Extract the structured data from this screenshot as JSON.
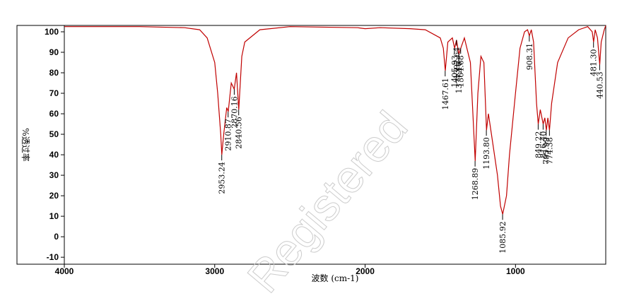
{
  "chart_data": {
    "type": "line",
    "ylabel": "%透过率",
    "xlabel": "波数 (cm-1)",
    "watermark": "Registered",
    "color": "#c00000",
    "xlim": [
      4000,
      400
    ],
    "ylim": [
      -13.4,
      103.1
    ],
    "xticks": [
      4000,
      3000,
      2000,
      1000
    ],
    "yticks": [
      -10,
      0,
      10,
      20,
      30,
      40,
      50,
      60,
      70,
      80,
      90,
      100
    ],
    "x": [
      4000,
      3500,
      3200,
      3100,
      3050,
      3000,
      2980,
      2960,
      2953,
      2940,
      2920,
      2910,
      2890,
      2870,
      2855,
      2840,
      2820,
      2800,
      2700,
      2500,
      2050,
      2000,
      1900,
      1700,
      1600,
      1500,
      1480,
      1467,
      1450,
      1420,
      1405,
      1392,
      1377,
      1364,
      1340,
      1300,
      1268,
      1250,
      1230,
      1210,
      1193,
      1180,
      1160,
      1120,
      1100,
      1085,
      1060,
      1040,
      1000,
      970,
      940,
      920,
      908,
      895,
      880,
      860,
      849,
      835,
      816,
      805,
      795,
      785,
      774,
      760,
      720,
      650,
      580,
      520,
      490,
      481,
      470,
      455,
      440,
      430,
      410,
      400
    ],
    "values": [
      102.5,
      102.5,
      102,
      101,
      97,
      85,
      70,
      50,
      40,
      50,
      63,
      61,
      75,
      72,
      80,
      62,
      88,
      95,
      101,
      102.5,
      102,
      101.5,
      102,
      101.5,
      101,
      97,
      92,
      81,
      95,
      97,
      92,
      96,
      89,
      92,
      97,
      85,
      37,
      70,
      88,
      85,
      52,
      60,
      50,
      30,
      15,
      11,
      20,
      40,
      70,
      92,
      100,
      101,
      98,
      101,
      95,
      65,
      55,
      62,
      55,
      58,
      52,
      58,
      52,
      65,
      85,
      97,
      101,
      102.5,
      100,
      95,
      101,
      97,
      84,
      95,
      101,
      103
    ],
    "peaks": [
      {
        "x": 2953.24,
        "y": 40,
        "label": "2953.24"
      },
      {
        "x": 2910.87,
        "y": 61,
        "label": "2910.87"
      },
      {
        "x": 2870.16,
        "y": 72,
        "label": "2870.16"
      },
      {
        "x": 2840.56,
        "y": 62,
        "label": "2840.56"
      },
      {
        "x": 1467.61,
        "y": 81,
        "label": "1467.61"
      },
      {
        "x": 1405.93,
        "y": 92,
        "label": "1405.93"
      },
      {
        "x": 1392.64,
        "y": 96,
        "label": "1392.64"
      },
      {
        "x": 1377.16,
        "y": 89,
        "label": "1377.16"
      },
      {
        "x": 1364.68,
        "y": 92,
        "label": "1364.68"
      },
      {
        "x": 1268.89,
        "y": 37,
        "label": "1268.89"
      },
      {
        "x": 1193.8,
        "y": 52,
        "label": "1193.80"
      },
      {
        "x": 1085.92,
        "y": 11,
        "label": "1085.92"
      },
      {
        "x": 908.31,
        "y": 98,
        "label": "908.31"
      },
      {
        "x": 849.22,
        "y": 55,
        "label": "849.22"
      },
      {
        "x": 816.4,
        "y": 55,
        "label": "816.40"
      },
      {
        "x": 795.99,
        "y": 52,
        "label": "795.99"
      },
      {
        "x": 774.38,
        "y": 52,
        "label": "774.38"
      },
      {
        "x": 481.3,
        "y": 95,
        "label": "481.30"
      },
      {
        "x": 440.53,
        "y": 84,
        "label": "440.53"
      }
    ]
  }
}
